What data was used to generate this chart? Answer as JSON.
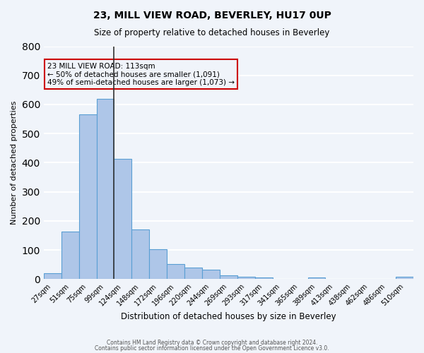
{
  "title": "23, MILL VIEW ROAD, BEVERLEY, HU17 0UP",
  "subtitle": "Size of property relative to detached houses in Beverley",
  "xlabel": "Distribution of detached houses by size in Beverley",
  "ylabel": "Number of detached properties",
  "bar_color": "#aec6e8",
  "bar_edge_color": "#5a9fd4",
  "categories": [
    "27sqm",
    "51sqm",
    "75sqm",
    "99sqm",
    "124sqm",
    "148sqm",
    "172sqm",
    "196sqm",
    "220sqm",
    "244sqm",
    "269sqm",
    "293sqm",
    "317sqm",
    "341sqm",
    "365sqm",
    "389sqm",
    "413sqm",
    "438sqm",
    "462sqm",
    "486sqm",
    "510sqm"
  ],
  "values": [
    20,
    163,
    565,
    620,
    412,
    170,
    103,
    52,
    40,
    33,
    14,
    9,
    6,
    0,
    0,
    5,
    0,
    0,
    0,
    0,
    7
  ],
  "ylim": [
    0,
    800
  ],
  "yticks": [
    0,
    100,
    200,
    300,
    400,
    500,
    600,
    700,
    800
  ],
  "annotation_title": "23 MILL VIEW ROAD: 113sqm",
  "annotation_line1": "← 50% of detached houses are smaller (1,091)",
  "annotation_line2": "49% of semi-detached houses are larger (1,073) →",
  "property_bar_index": 4,
  "vline_x": 4,
  "footer1": "Contains HM Land Registry data © Crown copyright and database right 2024.",
  "footer2": "Contains public sector information licensed under the Open Government Licence v3.0.",
  "background_color": "#f0f4fa",
  "grid_color": "#ffffff",
  "annotation_box_color": "#cc0000"
}
